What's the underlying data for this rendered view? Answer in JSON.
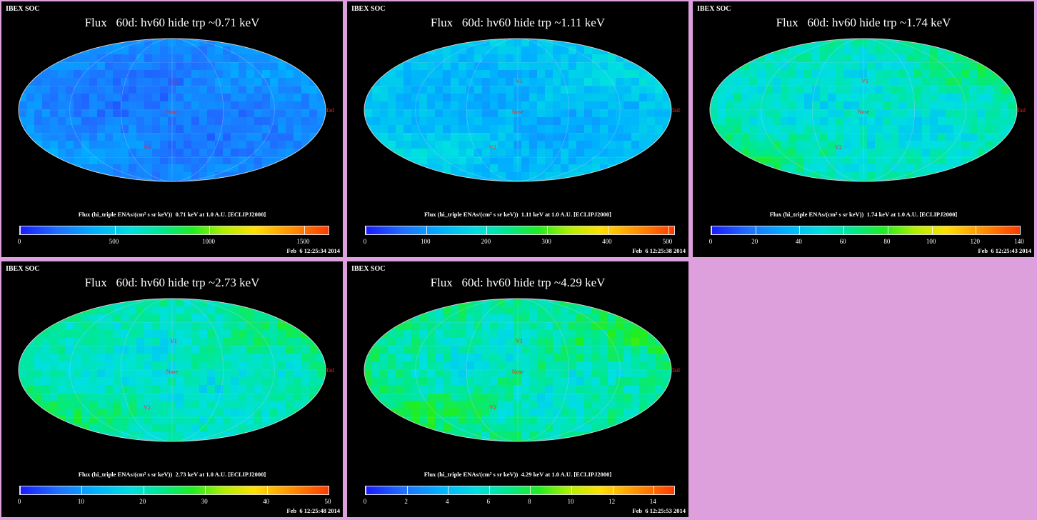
{
  "chart_data": [
    {
      "type": "heatmap",
      "soc_label": "IBEX SOC",
      "title": "Flux   60d: hv60 hide trp ~0.71 keV",
      "colorbar_label": "Flux (hi_triple ENAs/(cm² s sr keV))  0.71 keV at 1.0 A.U. [ECLIPJ2000]",
      "colorbar_ticks": [
        0,
        500,
        1000,
        1500
      ],
      "colorbar_max": 1630,
      "timestamp": "Feb  6 12:25:34 2014",
      "map_labels": [
        "Nose",
        "Tail",
        "V1",
        "V2"
      ],
      "field_mean": 0.1,
      "field_var": 0.08
    },
    {
      "type": "heatmap",
      "soc_label": "IBEX SOC",
      "title": "Flux   60d: hv60 hide trp ~1.11 keV",
      "colorbar_label": "Flux (hi_triple ENAs/(cm² s sr keV))  1.11 keV at 1.0 A.U. [ECLIPJ2000]",
      "colorbar_ticks": [
        0,
        100,
        200,
        300,
        400,
        500
      ],
      "colorbar_max": 510,
      "timestamp": "Feb  6 12:25:38 2014",
      "map_labels": [
        "Nose",
        "Tail",
        "V1",
        "V2"
      ],
      "field_mean": 0.2,
      "field_var": 0.1
    },
    {
      "type": "heatmap",
      "soc_label": "IBEX SOC",
      "title": "Flux   60d: hv60 hide trp ~1.74 keV",
      "colorbar_label": "Flux (hi_triple ENAs/(cm² s sr keV))  1.74 keV at 1.0 A.U. [ECLIPJ2000]",
      "colorbar_ticks": [
        0,
        20,
        40,
        60,
        80,
        100,
        120,
        140
      ],
      "colorbar_max": 140,
      "timestamp": "Feb  6 12:25:43 2014",
      "map_labels": [
        "Nose",
        "Tail",
        "V1",
        "V2"
      ],
      "field_mean": 0.3,
      "field_var": 0.13
    },
    {
      "type": "heatmap",
      "soc_label": "IBEX SOC",
      "title": "Flux   60d: hv60 hide trp ~2.73 keV",
      "colorbar_label": "Flux (hi_triple ENAs/(cm² s sr keV))  2.73 keV at 1.0 A.U. [ECLIPJ2000]",
      "colorbar_ticks": [
        0,
        10,
        20,
        30,
        40,
        50
      ],
      "colorbar_max": 50,
      "timestamp": "Feb  6 12:25:48 2014",
      "map_labels": [
        "Nose",
        "Tail",
        "V1",
        "V2"
      ],
      "field_mean": 0.32,
      "field_var": 0.12
    },
    {
      "type": "heatmap",
      "soc_label": "IBEX SOC",
      "title": "Flux   60d: hv60 hide trp ~4.29 keV",
      "colorbar_label": "Flux (hi_triple ENAs/(cm² s sr keV))  4.29 keV at 1.0 A.U. [ECLIPJ2000]",
      "colorbar_ticks": [
        0,
        2,
        4,
        6,
        8,
        10,
        12,
        14
      ],
      "colorbar_max": 15,
      "timestamp": "Feb  6 12:25:53 2014",
      "map_labels": [
        "Nose",
        "Tail",
        "V1",
        "V2"
      ],
      "field_mean": 0.33,
      "field_var": 0.14
    }
  ],
  "colors": {
    "background": "#dda0dd",
    "panel": "#000000",
    "grid_text": "#00c000",
    "marker_text": "#ff2020"
  }
}
